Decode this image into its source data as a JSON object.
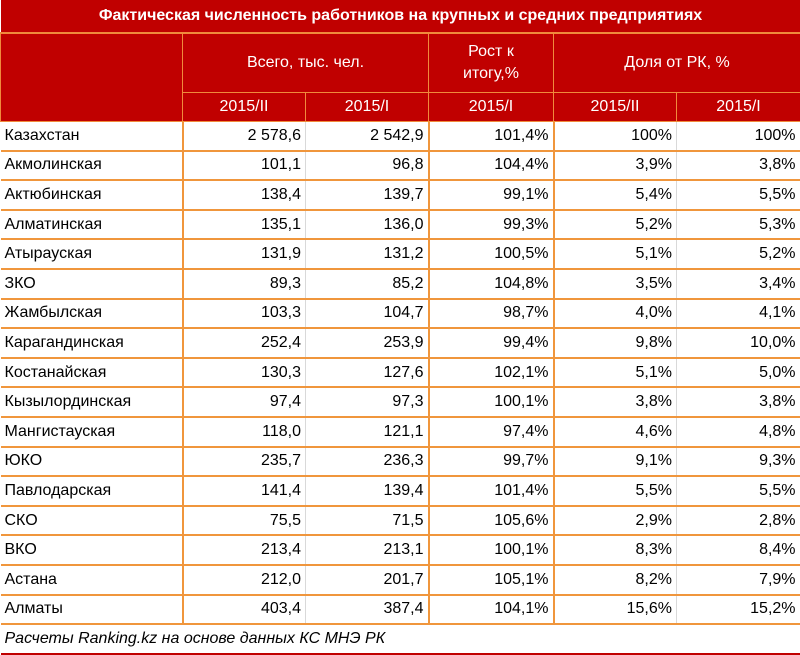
{
  "title": "Фактическая численность работников на крупных и средних предприятиях",
  "header": {
    "group_total": "Всего, тыс. чел.",
    "group_growth": "Рост к итогу,%",
    "group_share": "Доля от РК, %",
    "sub": [
      "2015/II",
      "2015/I",
      "2015/I",
      "2015/II",
      "2015/I"
    ]
  },
  "rows": [
    [
      "Казахстан",
      "2 578,6",
      "2 542,9",
      "101,4%",
      "100%",
      "100%"
    ],
    [
      "Акмолинская",
      "101,1",
      "96,8",
      "104,4%",
      "3,9%",
      "3,8%"
    ],
    [
      "Актюбинская",
      "138,4",
      "139,7",
      "99,1%",
      "5,4%",
      "5,5%"
    ],
    [
      "Алматинская",
      "135,1",
      "136,0",
      "99,3%",
      "5,2%",
      "5,3%"
    ],
    [
      "Атырауская",
      "131,9",
      "131,2",
      "100,5%",
      "5,1%",
      "5,2%"
    ],
    [
      "ЗКО",
      "89,3",
      "85,2",
      "104,8%",
      "3,5%",
      "3,4%"
    ],
    [
      "Жамбылская",
      "103,3",
      "104,7",
      "98,7%",
      "4,0%",
      "4,1%"
    ],
    [
      "Карагандинская",
      "252,4",
      "253,9",
      "99,4%",
      "9,8%",
      "10,0%"
    ],
    [
      "Костанайская",
      "130,3",
      "127,6",
      "102,1%",
      "5,1%",
      "5,0%"
    ],
    [
      "Кызылординская",
      "97,4",
      "97,3",
      "100,1%",
      "3,8%",
      "3,8%"
    ],
    [
      "Мангистауская",
      "118,0",
      "121,1",
      "97,4%",
      "4,6%",
      "4,8%"
    ],
    [
      "ЮКО",
      "235,7",
      "236,3",
      "99,7%",
      "9,1%",
      "9,3%"
    ],
    [
      "Павлодарская",
      "141,4",
      "139,4",
      "101,4%",
      "5,5%",
      "5,5%"
    ],
    [
      "СКО",
      "75,5",
      "71,5",
      "105,6%",
      "2,9%",
      "2,8%"
    ],
    [
      "ВКО",
      "213,4",
      "213,1",
      "100,1%",
      "8,3%",
      "8,4%"
    ],
    [
      "Астана",
      "212,0",
      "201,7",
      "105,1%",
      "8,2%",
      "7,9%"
    ],
    [
      "Алматы",
      "403,4",
      "387,4",
      "104,1%",
      "15,6%",
      "15,2%"
    ]
  ],
  "footer": "Расчеты Ranking.kz на основе данных КС МНЭ РК",
  "colors": {
    "header_bg": "#c00000",
    "border": "#f0963c"
  }
}
